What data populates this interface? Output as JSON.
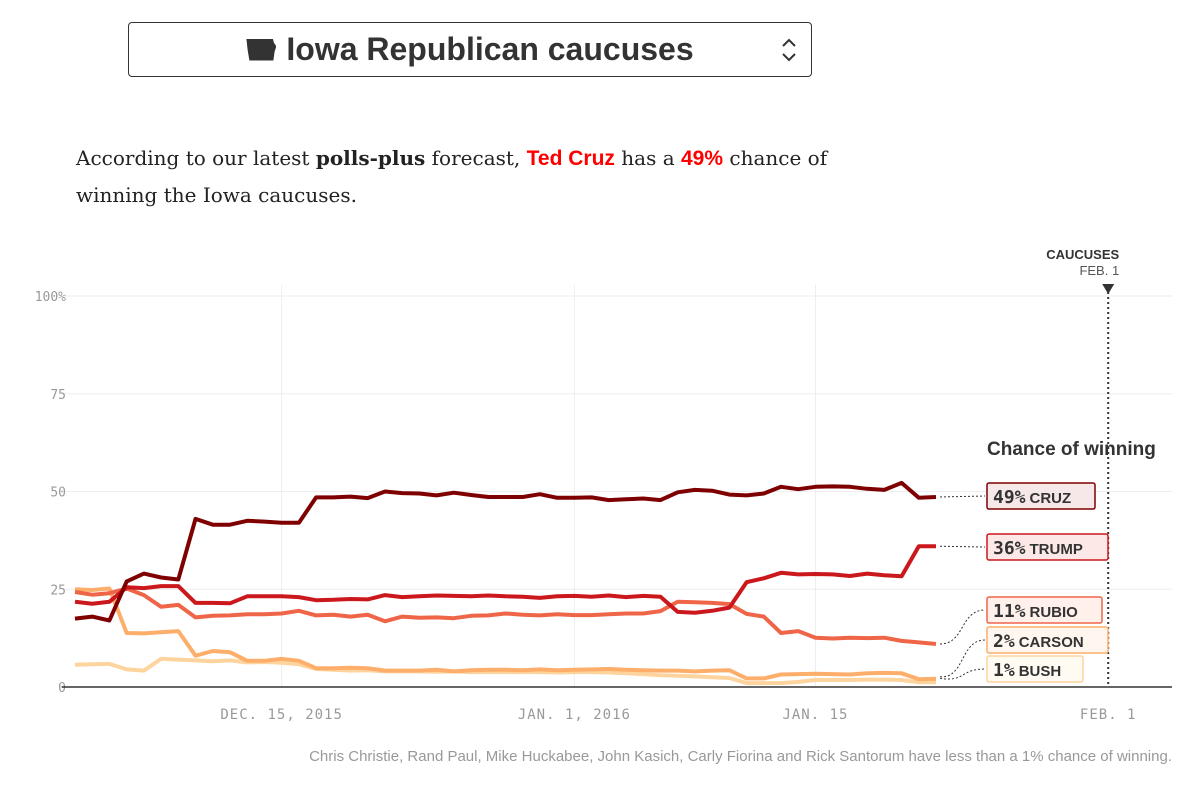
{
  "selector": {
    "title": "Iowa Republican caucuses",
    "icon": "iowa-state-icon"
  },
  "lede": {
    "p1": "According to our latest ",
    "model": "polls-plus",
    "p2": " forecast, ",
    "leader": "Ted Cruz",
    "p3": " has a ",
    "pct": "49%",
    "p4": " chance of winning the Iowa caucuses."
  },
  "footnote": "Chris Christie, Rand Paul, Mike Huckabee, John Kasich, Carly Fiorina and Rick Santorum have less than a 1% chance of winning.",
  "chart_data": {
    "type": "line",
    "title": "Chance of winning",
    "ylim": [
      0,
      100
    ],
    "yticks": [
      {
        "v": 0,
        "label": "0"
      },
      {
        "v": 25,
        "label": "25"
      },
      {
        "v": 50,
        "label": "50"
      },
      {
        "v": 75,
        "label": "75"
      },
      {
        "v": 100,
        "label": "100%"
      }
    ],
    "x_start": "Dec. 3, 2015",
    "x_end": "Jan. 22, 2016",
    "x_step_days": 1,
    "xticks": [
      {
        "day": 12,
        "label": "DEC. 15, 2015"
      },
      {
        "day": 29,
        "label": "JAN. 1, 2016"
      },
      {
        "day": 43,
        "label": "JAN. 15"
      },
      {
        "day": 60,
        "label": "FEB. 1"
      }
    ],
    "event": {
      "day": 60,
      "label": "CAUCUSES",
      "date": "FEB. 1"
    },
    "series": [
      {
        "name": "CRUZ",
        "final": "49%",
        "color": "#7f0000",
        "fill": "#f6e8e8",
        "values": [
          17.5,
          18,
          17,
          27,
          29,
          28,
          27.5,
          43,
          41.5,
          41.5,
          42.5,
          42.3,
          42,
          42,
          48.5,
          48.5,
          48.7,
          48.3,
          50,
          49.6,
          49.5,
          49,
          49.7,
          49.1,
          48.6,
          48.6,
          48.6,
          49.3,
          48.4,
          48.4,
          48.5,
          47.8,
          48,
          48.2,
          47.8,
          49.8,
          50.4,
          50.2,
          49.2,
          49,
          49.5,
          51.2,
          50.6,
          51.2,
          51.3,
          51.2,
          50.7,
          50.4,
          52.2,
          48.4,
          48.6
        ]
      },
      {
        "name": "TRUMP",
        "final": "36%",
        "color": "#cb181d",
        "fill": "#fde8e8",
        "values": [
          21.8,
          21.3,
          21.8,
          25.5,
          25.3,
          25.8,
          25.8,
          21.5,
          21.5,
          21.4,
          23.2,
          23.2,
          23.2,
          23,
          22.2,
          22.3,
          22.5,
          22.4,
          23.5,
          23,
          23.2,
          23.4,
          23.3,
          23.2,
          23.4,
          23.2,
          23.1,
          22.8,
          23.2,
          23.3,
          23.1,
          23.4,
          23,
          23.3,
          23.1,
          19.2,
          19,
          19.5,
          20.3,
          26.8,
          27.8,
          29.2,
          28.8,
          28.9,
          28.8,
          28.4,
          29,
          28.6,
          28.3,
          36,
          36
        ]
      },
      {
        "name": "RUBIO",
        "final": "11%",
        "color": "#ef6548",
        "fill": "#fff0ec",
        "values": [
          24.3,
          23.6,
          24,
          25.2,
          23.5,
          20.5,
          21,
          17.8,
          18.2,
          18.3,
          18.6,
          18.6,
          18.8,
          19.5,
          18.3,
          18.5,
          18,
          18.5,
          16.8,
          18,
          17.7,
          17.8,
          17.6,
          18.2,
          18.3,
          18.8,
          18.5,
          18.3,
          18.6,
          18.4,
          18.4,
          18.6,
          18.8,
          18.8,
          19.4,
          21.8,
          21.7,
          21.5,
          21.2,
          18.7,
          18,
          13.8,
          14.3,
          12.6,
          12.4,
          12.6,
          12.5,
          12.6,
          11.8,
          11.4,
          11
        ]
      },
      {
        "name": "CARSON",
        "final": "2%",
        "color": "#fdae6b",
        "fill": "#fff6ef",
        "values": [
          25,
          24.8,
          25.2,
          13.8,
          13.7,
          14,
          14.3,
          8,
          9.2,
          8.9,
          6.7,
          6.7,
          7.2,
          6.7,
          4.8,
          4.8,
          4.9,
          4.8,
          4.2,
          4.2,
          4.2,
          4.4,
          4,
          4.3,
          4.4,
          4.4,
          4.3,
          4.5,
          4.3,
          4.4,
          4.5,
          4.6,
          4.4,
          4.3,
          4.2,
          4.2,
          4,
          4.2,
          4.3,
          2.2,
          2.2,
          3.2,
          3.3,
          3.4,
          3.3,
          3.2,
          3.5,
          3.6,
          3.5,
          2,
          2.1
        ]
      },
      {
        "name": "BUSH",
        "final": "1%",
        "color": "#fdd49e",
        "fill": "#fffaf2",
        "values": [
          5.7,
          5.8,
          5.9,
          4.5,
          4.2,
          7.2,
          7,
          6.8,
          6.6,
          6.8,
          6.3,
          6.4,
          6.2,
          5.8,
          4.6,
          4.4,
          4.2,
          4.3,
          4,
          4,
          4,
          3.9,
          4,
          3.8,
          3.8,
          3.8,
          3.8,
          3.8,
          3.7,
          3.8,
          3.8,
          3.7,
          3.5,
          3.3,
          3,
          2.9,
          2.7,
          2.5,
          2.3,
          1,
          1,
          1,
          1.3,
          1.8,
          1.8,
          1.8,
          1.9,
          1.9,
          1.8,
          1.2,
          1.2
        ]
      }
    ]
  }
}
